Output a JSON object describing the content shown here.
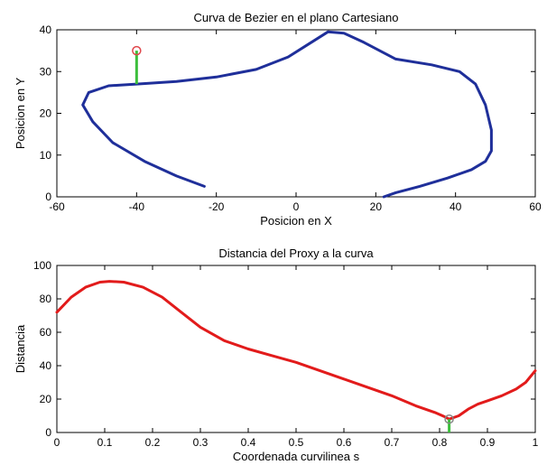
{
  "chart_data": [
    {
      "type": "line",
      "title": "Curva de Bezier en el plano Cartesiano",
      "xlabel": "Posicion en X",
      "ylabel": "Posicion en Y",
      "xlim": [
        -60,
        60
      ],
      "ylim": [
        0,
        40
      ],
      "xticks": [
        -60,
        -40,
        -20,
        0,
        20,
        40,
        60
      ],
      "yticks": [
        0,
        10,
        20,
        30,
        40
      ],
      "grid": false,
      "series": [
        {
          "color": "#1f2f9a",
          "x": [
            -23,
            -30,
            -38,
            -46,
            -51,
            -53.5,
            -52,
            -47,
            -40,
            -30,
            -20,
            -10,
            -2,
            3,
            8,
            12,
            17,
            25,
            34,
            41,
            45,
            47.5,
            49,
            49,
            47.5,
            44,
            38,
            31,
            25,
            22
          ],
          "y": [
            2.5,
            5,
            8.5,
            13,
            18,
            22,
            25,
            26.6,
            27,
            27.6,
            28.7,
            30.5,
            33.5,
            36.5,
            39.5,
            39.2,
            37,
            33,
            31.6,
            30,
            27,
            22,
            16,
            11,
            8.5,
            6.5,
            4.5,
            2.5,
            1,
            0
          ]
        }
      ],
      "markers": [
        {
          "shape": "circle",
          "color": "#e0474c",
          "x": -40,
          "y": 35
        }
      ],
      "segments": [
        {
          "color": "#3cbf3c",
          "x": [
            -40,
            -40
          ],
          "y": [
            35,
            27
          ]
        }
      ]
    },
    {
      "type": "line",
      "title": "Distancia del Proxy a la curva",
      "xlabel": "Coordenada curvilinea s",
      "ylabel": "Distancia",
      "xlim": [
        0,
        1
      ],
      "ylim": [
        0,
        100
      ],
      "xticks": [
        0,
        0.1,
        0.2,
        0.3,
        0.4,
        0.5,
        0.6,
        0.7,
        0.8,
        0.9,
        1
      ],
      "yticks": [
        0,
        20,
        40,
        60,
        80,
        100
      ],
      "grid": false,
      "series": [
        {
          "color": "#e21b1b",
          "x": [
            0,
            0.03,
            0.06,
            0.09,
            0.11,
            0.14,
            0.18,
            0.22,
            0.26,
            0.3,
            0.35,
            0.4,
            0.45,
            0.5,
            0.55,
            0.6,
            0.65,
            0.7,
            0.75,
            0.79,
            0.81,
            0.82,
            0.84,
            0.86,
            0.88,
            0.9,
            0.93,
            0.96,
            0.98,
            1.0
          ],
          "y": [
            72,
            81,
            87,
            90,
            90.5,
            90,
            87,
            81,
            72,
            63,
            55,
            50,
            46,
            42,
            37,
            32,
            27,
            22,
            16,
            12,
            9.5,
            8,
            10,
            14,
            17,
            19,
            22,
            26,
            30,
            37
          ]
        }
      ],
      "markers": [
        {
          "shape": "circle",
          "color": "#888888",
          "x": 0.82,
          "y": 8
        }
      ],
      "segments": [
        {
          "color": "#3cbf3c",
          "x": [
            0.82,
            0.82
          ],
          "y": [
            8,
            0
          ]
        }
      ]
    }
  ]
}
